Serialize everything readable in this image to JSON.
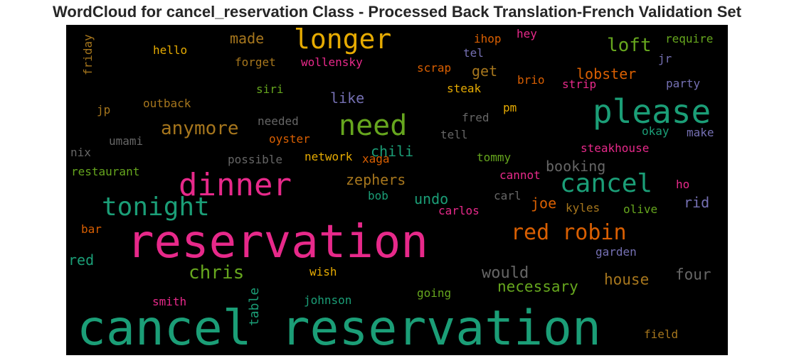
{
  "title": "WordCloud for cancel_reservation Class - Processed Back Translation-French Validation Set",
  "chart_data": {
    "type": "wordcloud",
    "background": "#000000",
    "palette": [
      "#1b9e77",
      "#d95f02",
      "#7570b3",
      "#e7298a",
      "#66a61e",
      "#e6ab02",
      "#a6761d",
      "#666666"
    ],
    "words": [
      {
        "text": "cancel reservation",
        "color": "#1b9e77"
      },
      {
        "text": "reservation",
        "color": "#e7298a"
      },
      {
        "text": "please",
        "color": "#1b9e77"
      },
      {
        "text": "dinner",
        "color": "#e7298a"
      },
      {
        "text": "need",
        "color": "#66a61e"
      },
      {
        "text": "tonight",
        "color": "#1b9e77"
      },
      {
        "text": "longer",
        "color": "#e6ab02"
      },
      {
        "text": "cancel",
        "color": "#1b9e77"
      },
      {
        "text": "red robin",
        "color": "#d95f02"
      },
      {
        "text": "anymore",
        "color": "#a6761d"
      },
      {
        "text": "chris",
        "color": "#66a61e"
      },
      {
        "text": "loft",
        "color": "#66a61e"
      },
      {
        "text": "made",
        "color": "#a6761d"
      },
      {
        "text": "lobster",
        "color": "#d95f02"
      },
      {
        "text": "chili",
        "color": "#1b9e77"
      },
      {
        "text": "zephers",
        "color": "#a6761d"
      },
      {
        "text": "like",
        "color": "#7570b3"
      },
      {
        "text": "get",
        "color": "#a6761d"
      },
      {
        "text": "booking",
        "color": "#666666"
      },
      {
        "text": "would",
        "color": "#666666"
      },
      {
        "text": "necessary",
        "color": "#66a61e"
      },
      {
        "text": "house",
        "color": "#a6761d"
      },
      {
        "text": "four",
        "color": "#666666"
      },
      {
        "text": "undo",
        "color": "#1b9e77"
      },
      {
        "text": "joe",
        "color": "#d95f02"
      },
      {
        "text": "rid",
        "color": "#7570b3"
      },
      {
        "text": "table",
        "color": "#1b9e77"
      },
      {
        "text": "red",
        "color": "#1b9e77"
      },
      {
        "text": "friday",
        "color": "#a6761d"
      },
      {
        "text": "hello",
        "color": "#e6ab02"
      },
      {
        "text": "forget",
        "color": "#a6761d"
      },
      {
        "text": "wollensky",
        "color": "#e7298a"
      },
      {
        "text": "ihop",
        "color": "#d95f02"
      },
      {
        "text": "hey",
        "color": "#e7298a"
      },
      {
        "text": "require",
        "color": "#66a61e"
      },
      {
        "text": "tel",
        "color": "#7570b3"
      },
      {
        "text": "jr",
        "color": "#7570b3"
      },
      {
        "text": "scrap",
        "color": "#d95f02"
      },
      {
        "text": "brio",
        "color": "#d95f02"
      },
      {
        "text": "strip",
        "color": "#e7298a"
      },
      {
        "text": "party",
        "color": "#7570b3"
      },
      {
        "text": "siri",
        "color": "#66a61e"
      },
      {
        "text": "steak",
        "color": "#e6ab02"
      },
      {
        "text": "outback",
        "color": "#a6761d"
      },
      {
        "text": "pm",
        "color": "#e6ab02"
      },
      {
        "text": "jp",
        "color": "#a6761d"
      },
      {
        "text": "needed",
        "color": "#666666"
      },
      {
        "text": "fred",
        "color": "#666666"
      },
      {
        "text": "tell",
        "color": "#666666"
      },
      {
        "text": "okay",
        "color": "#1b9e77"
      },
      {
        "text": "make",
        "color": "#7570b3"
      },
      {
        "text": "umami",
        "color": "#666666"
      },
      {
        "text": "oyster",
        "color": "#d95f02"
      },
      {
        "text": "nix",
        "color": "#666666"
      },
      {
        "text": "possible",
        "color": "#666666"
      },
      {
        "text": "network",
        "color": "#e6ab02"
      },
      {
        "text": "xaga",
        "color": "#d95f02"
      },
      {
        "text": "tommy",
        "color": "#66a61e"
      },
      {
        "text": "steakhouse",
        "color": "#e7298a"
      },
      {
        "text": "restaurant",
        "color": "#66a61e"
      },
      {
        "text": "cannot",
        "color": "#e7298a"
      },
      {
        "text": "bob",
        "color": "#1b9e77"
      },
      {
        "text": "carl",
        "color": "#666666"
      },
      {
        "text": "ho",
        "color": "#e7298a"
      },
      {
        "text": "carlos",
        "color": "#e7298a"
      },
      {
        "text": "kyles",
        "color": "#a6761d"
      },
      {
        "text": "olive",
        "color": "#66a61e"
      },
      {
        "text": "bar",
        "color": "#d95f02"
      },
      {
        "text": "garden",
        "color": "#7570b3"
      },
      {
        "text": "wish",
        "color": "#e6ab02"
      },
      {
        "text": "going",
        "color": "#66a61e"
      },
      {
        "text": "smith",
        "color": "#e7298a"
      },
      {
        "text": "johnson",
        "color": "#1b9e77"
      },
      {
        "text": "field",
        "color": "#a6761d"
      }
    ]
  }
}
